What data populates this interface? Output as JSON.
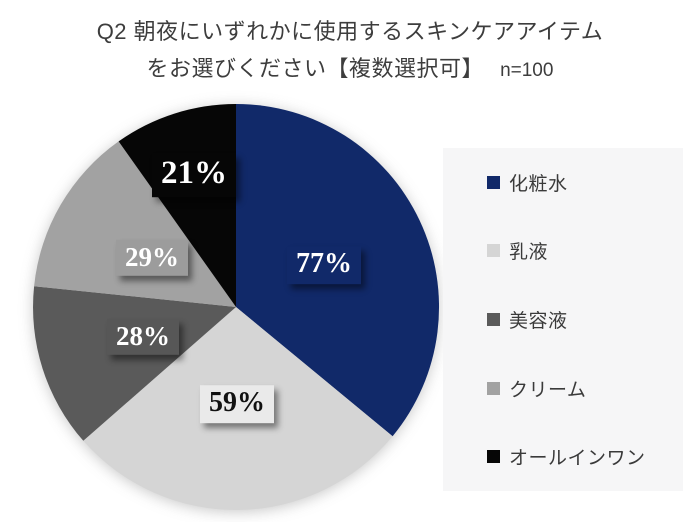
{
  "title": {
    "line1": "Q2 朝夜にいずれかに使用するスキンケアアイテム",
    "line2": "をお選びください【複数選択可】",
    "sample_size": "n=100"
  },
  "chart_data": {
    "type": "pie",
    "title": "Q2 朝夜にいずれかに使用するスキンケアアイテムをお選びください【複数選択可】 n=100",
    "sample_size": 100,
    "categories": [
      "化粧水",
      "乳液",
      "美容液",
      "クリーム",
      "オールインワン"
    ],
    "values": [
      77,
      59,
      28,
      29,
      21
    ],
    "unit": "%",
    "data_labels": [
      "77%",
      "59%",
      "28%",
      "29%",
      "21%"
    ],
    "slice_colors": [
      "#112969",
      "#d5d5d5",
      "#5a5a5a",
      "#a2a2a2",
      "#060606"
    ],
    "label_box_colors": [
      "#112969",
      "#eaeaea",
      "#575757",
      "#9c9c9c",
      "#060606"
    ],
    "label_text_colors": [
      "#ffffff",
      "#111111",
      "#ffffff",
      "#ffffff",
      "#ffffff"
    ],
    "label_font_sizes": [
      28,
      28,
      27,
      27,
      33
    ],
    "label_radius_fractions": [
      0.48,
      0.48,
      0.48,
      0.48,
      0.68
    ],
    "start_angle_deg": 0,
    "direction": "clockwise",
    "legend_position": "right",
    "legend_background": "#f6f6f7"
  },
  "legend": {
    "items": [
      {
        "label": "化粧水",
        "color": "#112969"
      },
      {
        "label": "乳液",
        "color": "#d5d5d5"
      },
      {
        "label": "美容液",
        "color": "#5a5a5a"
      },
      {
        "label": "クリーム",
        "color": "#a2a2a2"
      },
      {
        "label": "オールインワン",
        "color": "#060606"
      }
    ]
  }
}
